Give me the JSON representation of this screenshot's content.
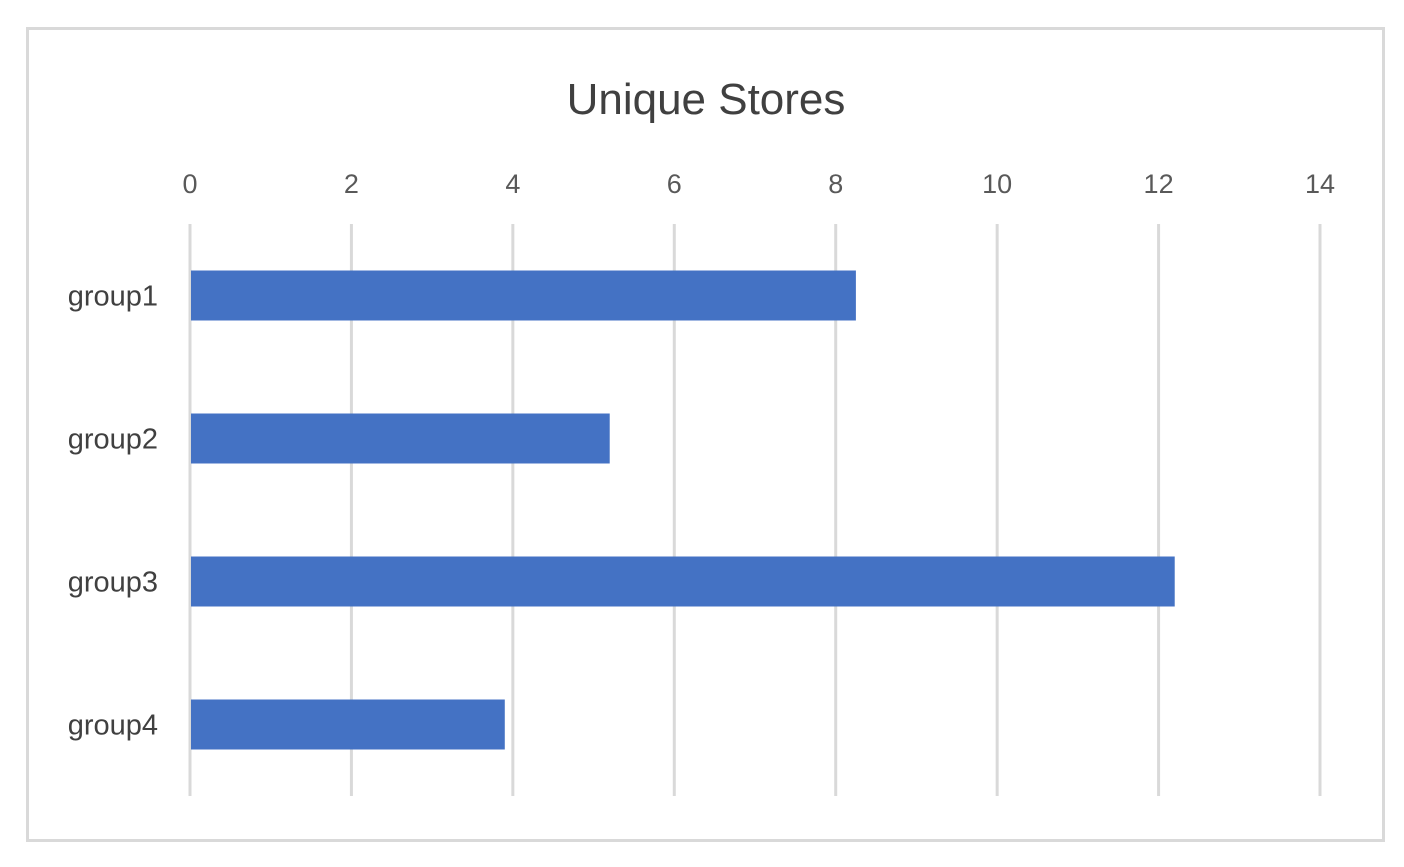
{
  "chart_data": {
    "type": "bar",
    "orientation": "horizontal",
    "title": "Unique Stores",
    "categories": [
      "group1",
      "group2",
      "group3",
      "group4"
    ],
    "values": [
      8.25,
      5.2,
      12.2,
      3.9
    ],
    "xlim": [
      0,
      14
    ],
    "xticks": [
      "0",
      "2",
      "4",
      "6",
      "8",
      "10",
      "12",
      "14"
    ],
    "x_axis_position": "top",
    "grid": true,
    "legend": "none",
    "bar_color": "#4472C4",
    "grid_color": "#d9d9d9"
  }
}
